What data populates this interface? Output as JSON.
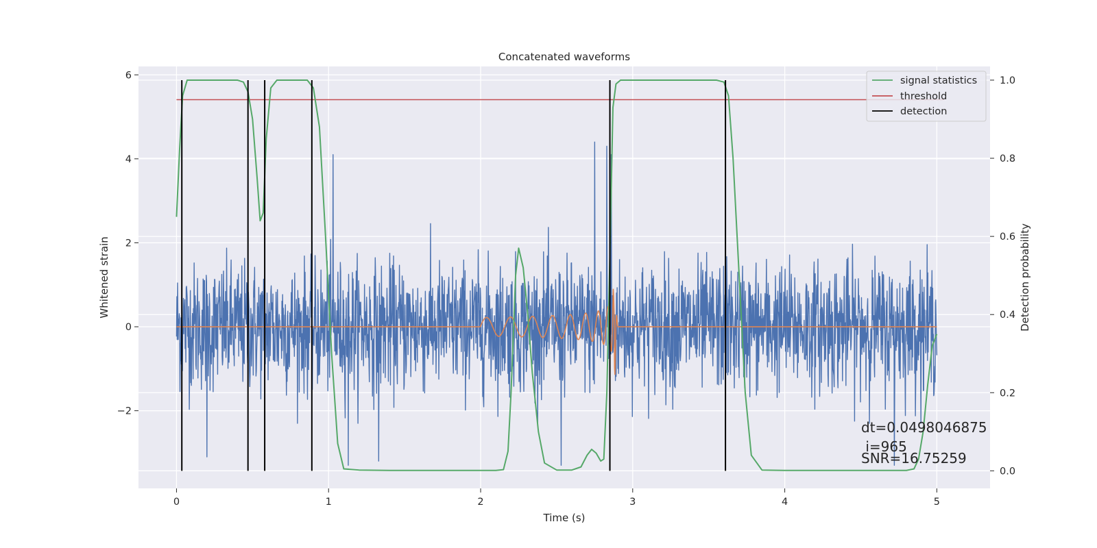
{
  "chart_data": {
    "type": "line",
    "title": "Concatenated waveforms",
    "xlabel": "Time (s)",
    "ylabel_left": "Whitened strain",
    "ylabel_right": "Detection probability",
    "xlim": [
      -0.25,
      5.35
    ],
    "ylim_left": [
      -3.85,
      6.2
    ],
    "ylim_right": [
      -0.045,
      1.035
    ],
    "x_ticks": [
      0,
      1,
      2,
      3,
      4,
      5
    ],
    "y_ticks_left": [
      -2,
      0,
      2,
      4,
      6
    ],
    "y_ticks_right": [
      0.0,
      0.2,
      0.4,
      0.6,
      0.8,
      1.0
    ],
    "x_tick_labels": [
      "0",
      "1",
      "2",
      "3",
      "4",
      "5"
    ],
    "y_tick_labels_left": [
      "−2",
      "0",
      "2",
      "4",
      "6"
    ],
    "y_tick_labels_right": [
      "0.0",
      "0.2",
      "0.4",
      "0.6",
      "0.8",
      "1.0"
    ],
    "grid": true,
    "legend_position": "top-right",
    "legend": [
      {
        "label": "signal statistics",
        "color": "#55a868"
      },
      {
        "label": "threshold",
        "color": "#c44e52"
      },
      {
        "label": "detection",
        "color": "#000000"
      }
    ],
    "series": [
      {
        "name": "signal statistics",
        "axis": "right",
        "color": "#55a868",
        "x": [
          0,
          0.02,
          0.04,
          0.07,
          0.1,
          0.2,
          0.3,
          0.4,
          0.44,
          0.47,
          0.5,
          0.53,
          0.55,
          0.57,
          0.59,
          0.62,
          0.66,
          0.7,
          0.8,
          0.86,
          0.9,
          0.94,
          0.98,
          1.02,
          1.06,
          1.1,
          1.2,
          1.4,
          1.6,
          1.8,
          2.0,
          2.1,
          2.15,
          2.18,
          2.2,
          2.23,
          2.25,
          2.28,
          2.31,
          2.34,
          2.38,
          2.42,
          2.5,
          2.6,
          2.66,
          2.7,
          2.73,
          2.76,
          2.79,
          2.81,
          2.83,
          2.85,
          2.87,
          2.89,
          2.92,
          3.0,
          3.2,
          3.4,
          3.55,
          3.6,
          3.63,
          3.66,
          3.7,
          3.74,
          3.78,
          3.85,
          4.0,
          4.4,
          4.8,
          4.85,
          4.88,
          4.91,
          4.94,
          4.97,
          5.0
        ],
        "y": [
          0.65,
          0.82,
          0.96,
          1.0,
          1.0,
          1.0,
          1.0,
          1.0,
          0.995,
          0.97,
          0.9,
          0.75,
          0.64,
          0.66,
          0.85,
          0.98,
          1.0,
          1.0,
          1.0,
          1.0,
          0.98,
          0.88,
          0.6,
          0.3,
          0.07,
          0.005,
          0.002,
          0.001,
          0.001,
          0.001,
          0.001,
          0.001,
          0.003,
          0.05,
          0.2,
          0.5,
          0.57,
          0.52,
          0.4,
          0.25,
          0.1,
          0.02,
          0.002,
          0.002,
          0.01,
          0.04,
          0.055,
          0.045,
          0.025,
          0.03,
          0.2,
          0.55,
          0.93,
          0.99,
          1.0,
          1.0,
          1.0,
          1.0,
          1.0,
          0.995,
          0.96,
          0.8,
          0.5,
          0.2,
          0.04,
          0.002,
          0.001,
          0.001,
          0.001,
          0.005,
          0.03,
          0.1,
          0.22,
          0.32,
          0.35
        ]
      },
      {
        "name": "threshold",
        "axis": "right",
        "color": "#c44e52",
        "x": [
          0,
          5.05
        ],
        "y": [
          0.95,
          0.95
        ]
      },
      {
        "name": "injected waveform",
        "axis": "left",
        "color": "#dd8452",
        "chirp": {
          "start": 2.0,
          "merger": 2.875,
          "end": 2.9,
          "amplitude_start": 0.22,
          "amplitude_peak": 3.3,
          "frequency_start_hz": 30,
          "frequency_end_hz": 220
        }
      },
      {
        "name": "whitened strain",
        "axis": "left",
        "color": "#4c72b0",
        "x_range": [
          0,
          5
        ],
        "typical_range": [
          -2.0,
          2.5
        ],
        "peaks": [
          {
            "x": 1.03,
            "y": 4.1
          },
          {
            "x": 2.75,
            "y": 4.4
          },
          {
            "x": 2.83,
            "y": 4.3
          },
          {
            "x": 2.86,
            "y": 4.1
          },
          {
            "x": 1.13,
            "y": -3.3
          },
          {
            "x": 0.2,
            "y": -3.1
          },
          {
            "x": 1.33,
            "y": -3.2
          },
          {
            "x": 2.53,
            "y": -3.3
          },
          {
            "x": 4.72,
            "y": -3.3
          }
        ]
      }
    ],
    "detections": [
      0.035,
      0.47,
      0.58,
      0.89,
      2.85,
      3.61
    ],
    "annotations": {
      "dt": "dt=0.0498046875",
      "i": " i=965",
      "snr": "SNR=16.75259"
    }
  },
  "colors": {
    "axes_face": "#eaeaf2",
    "grid": "#ffffff",
    "strain": "#4c72b0",
    "chirp": "#dd8452"
  }
}
